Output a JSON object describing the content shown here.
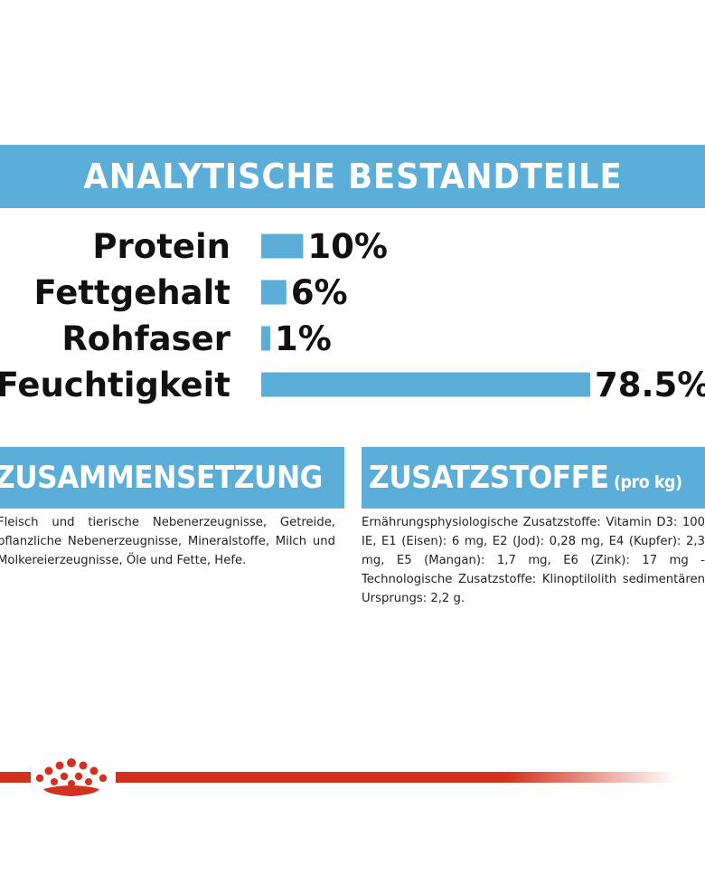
{
  "header": {
    "title": "ANALYTISCHE BESTANDTEILE"
  },
  "chart_data": {
    "type": "bar",
    "orientation": "horizontal",
    "title": "ANALYTISCHE BESTANDTEILE",
    "categories": [
      "Protein",
      "Fettgehalt",
      "Rohfaser",
      "Feuchtigkeit"
    ],
    "values": [
      10,
      6,
      1,
      78.5
    ],
    "value_labels": [
      "10%",
      "6%",
      "1%",
      "78.5%"
    ],
    "xlim": [
      0,
      78.5
    ],
    "grid": false,
    "bar_color": "#5aaed7"
  },
  "composition": {
    "heading": "ZUSAMMENSETZUNG",
    "text": "Fleisch und tierische Nebenerzeugnisse, Getreide, pflanzliche Nebenerzeugnisse, Mineralstoffe, Milch und Molkereierzeugnisse, Öle und Fette, Hefe."
  },
  "additives": {
    "heading": "ZUSATZSTOFFE",
    "unit": "(pro kg)",
    "text": "Ernährungsphysiologische Zusatzstoffe: Vitamin D3: 100 IE, E1 (Eisen): 6 mg, E2 (Jod): 0,28 mg, E4 (Kupfer): 2,3 mg, E5 (Mangan): 1,7 mg, E6 (Zink): 17 mg - Technologische Zusatzstoffe: Klinoptilolith sedimentären Ursprungs: 2,2 g."
  },
  "colors": {
    "accent": "#5aaed7",
    "brand_red": "#d3311f"
  },
  "icons": {
    "logo": "royal-canin-crown-icon"
  }
}
